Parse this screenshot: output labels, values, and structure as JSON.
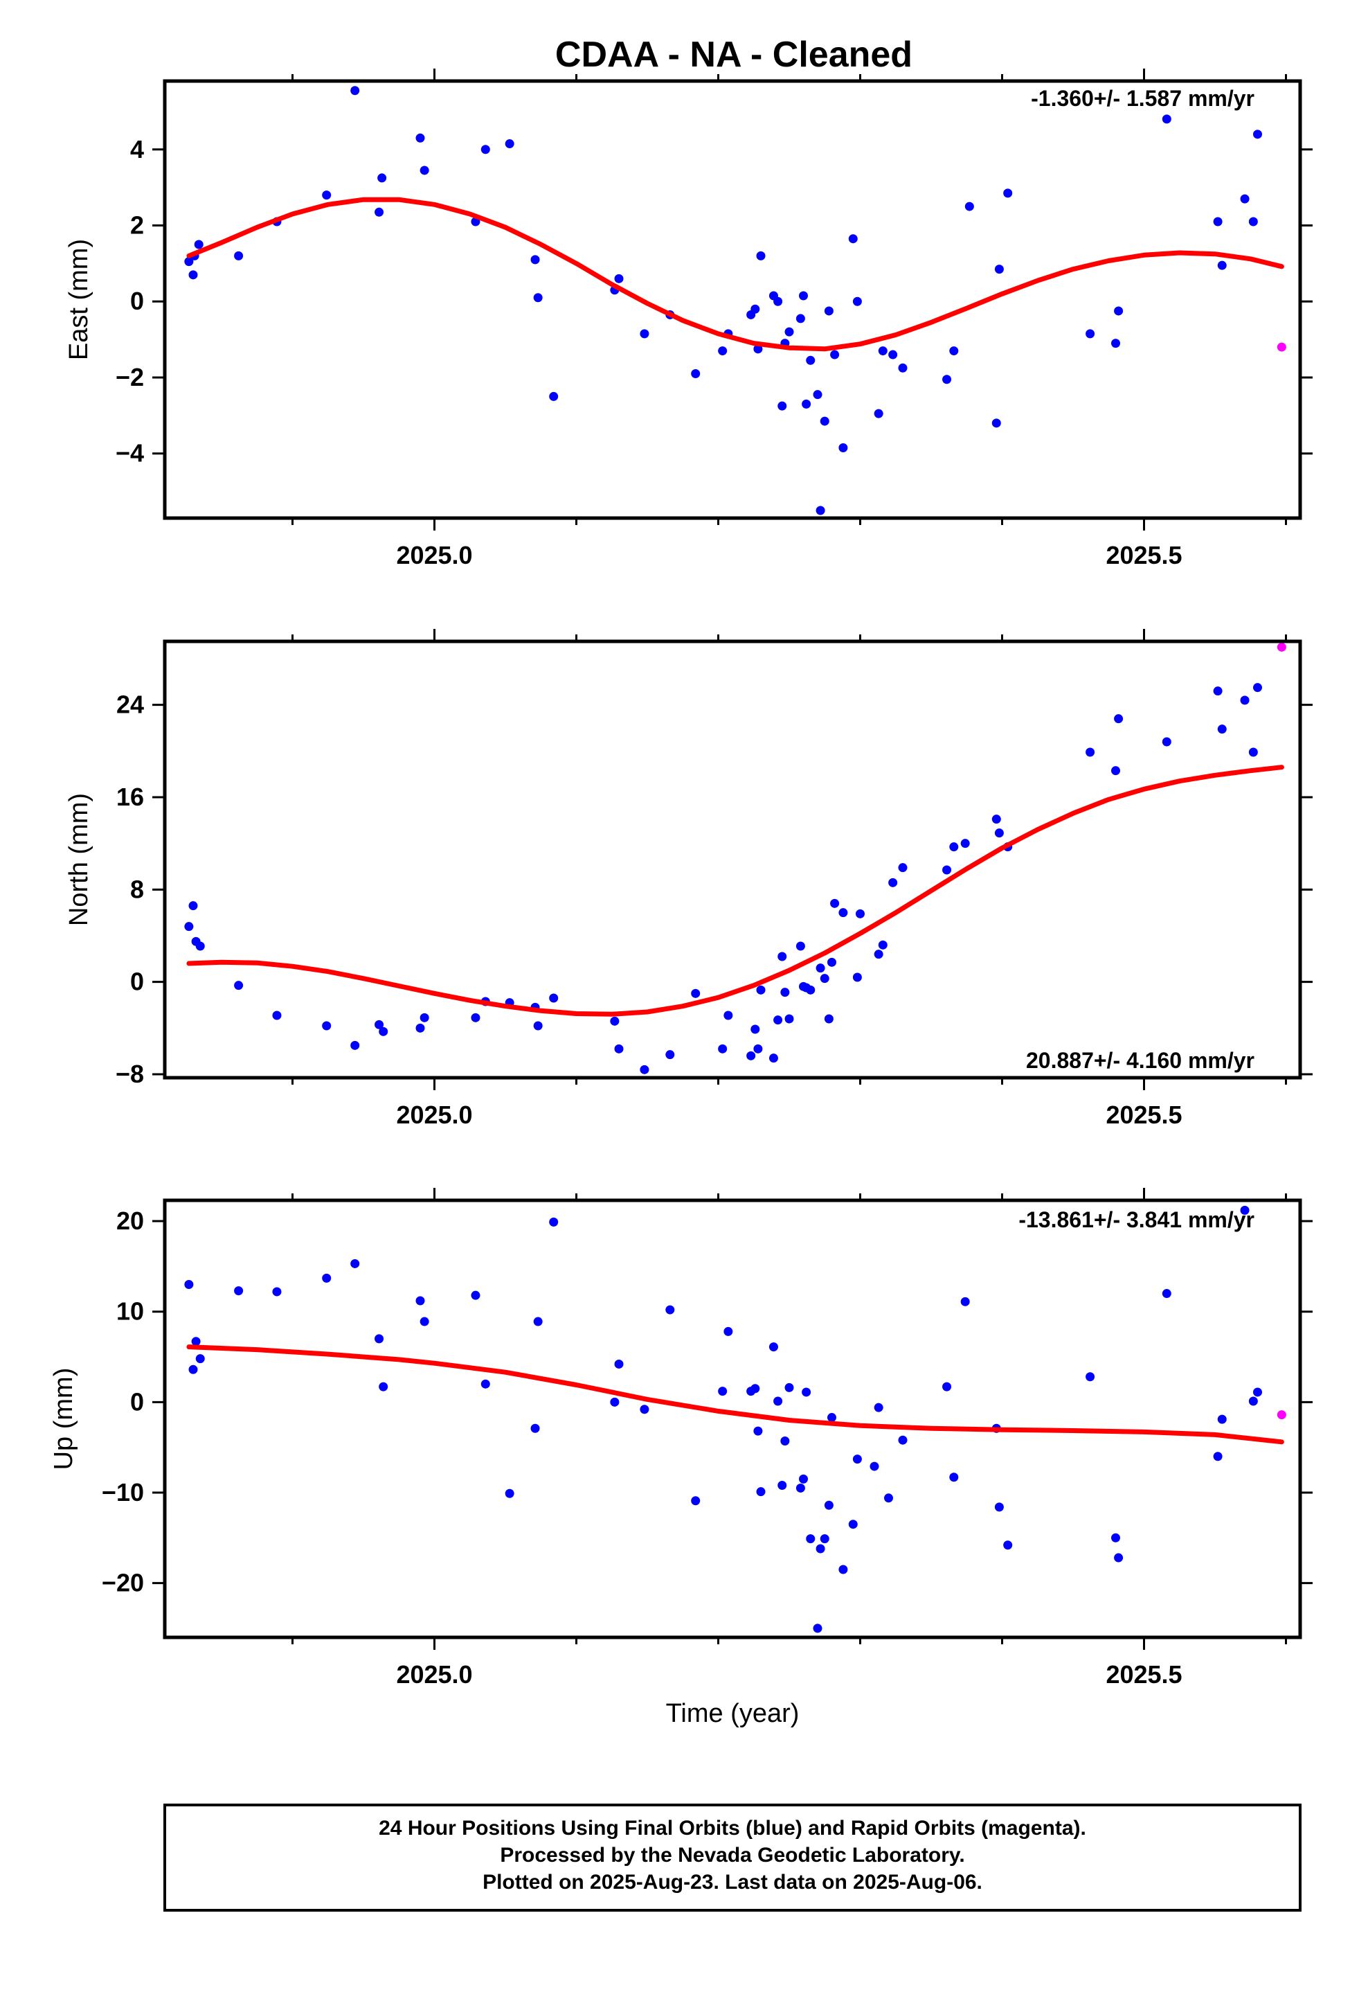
{
  "title": "CDAA  - NA - Cleaned",
  "xlabel": "Time (year)",
  "footer": [
    "24 Hour Positions Using Final Orbits (blue) and Rapid Orbits (magenta).",
    "Processed by the Nevada Geodetic Laboratory.",
    "Plotted on 2025-Aug-23. Last data on 2025-Aug-06."
  ],
  "colors": {
    "final": "#0000ff",
    "rapid": "#ff00ff",
    "fit": "#ff0000",
    "axis": "#000000"
  },
  "chart_data": [
    {
      "type": "scatter",
      "ylabel": "East (mm)",
      "rate": "-1.360+/- 1.587 mm/yr",
      "xlim": [
        2024.81,
        2025.61
      ],
      "ylim": [
        -5.7,
        5.8
      ],
      "yticks": [
        -4,
        -2,
        0,
        2,
        4
      ],
      "xticks": [
        2025.0,
        2025.5
      ],
      "xtick_labels": [
        "2025.0",
        "2025.5"
      ],
      "grid": false,
      "final": [
        [
          2024.827,
          1.05
        ],
        [
          2024.83,
          0.7
        ],
        [
          2024.831,
          1.2
        ],
        [
          2024.834,
          1.5
        ],
        [
          2024.862,
          1.2
        ],
        [
          2024.889,
          2.1
        ],
        [
          2024.924,
          2.8
        ],
        [
          2024.944,
          5.55
        ],
        [
          2024.961,
          2.35
        ],
        [
          2024.963,
          3.25
        ],
        [
          2024.99,
          4.3
        ],
        [
          2024.993,
          3.45
        ],
        [
          2025.029,
          2.1
        ],
        [
          2025.036,
          4.0
        ],
        [
          2025.053,
          4.15
        ],
        [
          2025.071,
          1.1
        ],
        [
          2025.073,
          0.1
        ],
        [
          2025.084,
          -2.5
        ],
        [
          2025.127,
          0.3
        ],
        [
          2025.13,
          0.6
        ],
        [
          2025.148,
          -0.85
        ],
        [
          2025.166,
          -0.35
        ],
        [
          2025.184,
          -1.9
        ],
        [
          2025.203,
          -1.3
        ],
        [
          2025.207,
          -0.85
        ],
        [
          2025.223,
          -0.35
        ],
        [
          2025.226,
          -0.2
        ],
        [
          2025.228,
          -1.25
        ],
        [
          2025.23,
          1.2
        ],
        [
          2025.239,
          0.15
        ],
        [
          2025.242,
          0.0
        ],
        [
          2025.245,
          -2.75
        ],
        [
          2025.247,
          -1.1
        ],
        [
          2025.25,
          -0.8
        ],
        [
          2025.258,
          -0.45
        ],
        [
          2025.26,
          0.15
        ],
        [
          2025.262,
          -2.7
        ],
        [
          2025.265,
          -1.55
        ],
        [
          2025.27,
          -2.45
        ],
        [
          2025.272,
          -5.5
        ],
        [
          2025.275,
          -3.15
        ],
        [
          2025.278,
          -0.25
        ],
        [
          2025.282,
          -1.4
        ],
        [
          2025.288,
          -3.85
        ],
        [
          2025.295,
          1.65
        ],
        [
          2025.298,
          0.0
        ],
        [
          2025.313,
          -2.95
        ],
        [
          2025.316,
          -1.3
        ],
        [
          2025.323,
          -1.4
        ],
        [
          2025.33,
          -1.75
        ],
        [
          2025.361,
          -2.05
        ],
        [
          2025.366,
          -1.3
        ],
        [
          2025.377,
          2.5
        ],
        [
          2025.396,
          -3.2
        ],
        [
          2025.398,
          0.85
        ],
        [
          2025.404,
          2.85
        ],
        [
          2025.462,
          -0.85
        ],
        [
          2025.48,
          -1.1
        ],
        [
          2025.482,
          -0.25
        ],
        [
          2025.516,
          4.8
        ],
        [
          2025.552,
          2.1
        ],
        [
          2025.555,
          0.95
        ],
        [
          2025.571,
          2.7
        ],
        [
          2025.577,
          2.1
        ],
        [
          2025.58,
          4.4
        ]
      ],
      "rapid": [
        [
          2025.597,
          -1.2
        ]
      ],
      "fit": [
        [
          2024.827,
          1.2
        ],
        [
          2024.85,
          1.55
        ],
        [
          2024.875,
          1.95
        ],
        [
          2024.9,
          2.3
        ],
        [
          2024.925,
          2.55
        ],
        [
          2024.95,
          2.68
        ],
        [
          2024.975,
          2.68
        ],
        [
          2025.0,
          2.55
        ],
        [
          2025.025,
          2.3
        ],
        [
          2025.05,
          1.95
        ],
        [
          2025.075,
          1.5
        ],
        [
          2025.1,
          1.0
        ],
        [
          2025.125,
          0.45
        ],
        [
          2025.15,
          -0.05
        ],
        [
          2025.175,
          -0.5
        ],
        [
          2025.2,
          -0.85
        ],
        [
          2025.225,
          -1.1
        ],
        [
          2025.25,
          -1.22
        ],
        [
          2025.275,
          -1.25
        ],
        [
          2025.3,
          -1.12
        ],
        [
          2025.325,
          -0.88
        ],
        [
          2025.35,
          -0.55
        ],
        [
          2025.375,
          -0.18
        ],
        [
          2025.4,
          0.2
        ],
        [
          2025.425,
          0.55
        ],
        [
          2025.45,
          0.85
        ],
        [
          2025.475,
          1.07
        ],
        [
          2025.5,
          1.22
        ],
        [
          2025.525,
          1.28
        ],
        [
          2025.55,
          1.25
        ],
        [
          2025.575,
          1.12
        ],
        [
          2025.597,
          0.92
        ]
      ]
    },
    {
      "type": "scatter",
      "ylabel": "North (mm)",
      "rate": "20.887+/- 4.160 mm/yr",
      "xlim": [
        2024.81,
        2025.61
      ],
      "ylim": [
        -8.3,
        29.5
      ],
      "yticks": [
        -8,
        0,
        8,
        16,
        24
      ],
      "xticks": [
        2025.0,
        2025.5
      ],
      "xtick_labels": [
        "2025.0",
        "2025.5"
      ],
      "grid": false,
      "final": [
        [
          2024.827,
          4.8
        ],
        [
          2024.83,
          6.6
        ],
        [
          2024.832,
          3.5
        ],
        [
          2024.835,
          3.1
        ],
        [
          2024.862,
          -0.3
        ],
        [
          2024.889,
          -2.9
        ],
        [
          2024.924,
          -3.8
        ],
        [
          2024.944,
          -5.5
        ],
        [
          2024.961,
          -3.7
        ],
        [
          2024.964,
          -4.3
        ],
        [
          2024.99,
          -4.0
        ],
        [
          2024.993,
          -3.1
        ],
        [
          2025.029,
          -3.1
        ],
        [
          2025.036,
          -1.7
        ],
        [
          2025.053,
          -1.8
        ],
        [
          2025.071,
          -2.2
        ],
        [
          2025.073,
          -3.8
        ],
        [
          2025.084,
          -1.4
        ],
        [
          2025.127,
          -3.4
        ],
        [
          2025.13,
          -5.8
        ],
        [
          2025.148,
          -7.6
        ],
        [
          2025.166,
          -6.3
        ],
        [
          2025.184,
          -1.0
        ],
        [
          2025.203,
          -5.8
        ],
        [
          2025.207,
          -2.9
        ],
        [
          2025.223,
          -6.4
        ],
        [
          2025.226,
          -4.1
        ],
        [
          2025.228,
          -5.8
        ],
        [
          2025.23,
          -0.7
        ],
        [
          2025.239,
          -6.6
        ],
        [
          2025.242,
          -3.3
        ],
        [
          2025.245,
          2.2
        ],
        [
          2025.247,
          -0.9
        ],
        [
          2025.25,
          -3.2
        ],
        [
          2025.258,
          3.1
        ],
        [
          2025.26,
          -0.4
        ],
        [
          2025.262,
          -0.5
        ],
        [
          2025.265,
          -0.7
        ],
        [
          2025.272,
          1.2
        ],
        [
          2025.275,
          0.3
        ],
        [
          2025.278,
          -3.2
        ],
        [
          2025.28,
          1.7
        ],
        [
          2025.282,
          6.8
        ],
        [
          2025.288,
          6.0
        ],
        [
          2025.298,
          0.4
        ],
        [
          2025.3,
          5.9
        ],
        [
          2025.313,
          2.4
        ],
        [
          2025.316,
          3.2
        ],
        [
          2025.323,
          8.6
        ],
        [
          2025.33,
          9.9
        ],
        [
          2025.361,
          9.7
        ],
        [
          2025.366,
          11.7
        ],
        [
          2025.374,
          12.0
        ],
        [
          2025.396,
          14.1
        ],
        [
          2025.398,
          12.9
        ],
        [
          2025.404,
          11.7
        ],
        [
          2025.462,
          19.9
        ],
        [
          2025.48,
          18.3
        ],
        [
          2025.482,
          22.8
        ],
        [
          2025.516,
          20.8
        ],
        [
          2025.552,
          25.2
        ],
        [
          2025.555,
          21.9
        ],
        [
          2025.571,
          24.4
        ],
        [
          2025.577,
          19.9
        ],
        [
          2025.58,
          25.5
        ]
      ],
      "rapid": [
        [
          2025.597,
          29.0
        ]
      ],
      "fit": [
        [
          2024.827,
          1.6
        ],
        [
          2024.85,
          1.7
        ],
        [
          2024.875,
          1.65
        ],
        [
          2024.9,
          1.35
        ],
        [
          2024.925,
          0.9
        ],
        [
          2024.95,
          0.3
        ],
        [
          2024.975,
          -0.35
        ],
        [
          2025.0,
          -1.0
        ],
        [
          2025.025,
          -1.6
        ],
        [
          2025.05,
          -2.1
        ],
        [
          2025.075,
          -2.5
        ],
        [
          2025.1,
          -2.75
        ],
        [
          2025.125,
          -2.8
        ],
        [
          2025.15,
          -2.6
        ],
        [
          2025.175,
          -2.1
        ],
        [
          2025.2,
          -1.35
        ],
        [
          2025.225,
          -0.3
        ],
        [
          2025.25,
          1.0
        ],
        [
          2025.275,
          2.5
        ],
        [
          2025.3,
          4.2
        ],
        [
          2025.325,
          6.0
        ],
        [
          2025.35,
          7.9
        ],
        [
          2025.375,
          9.8
        ],
        [
          2025.4,
          11.6
        ],
        [
          2025.425,
          13.2
        ],
        [
          2025.45,
          14.6
        ],
        [
          2025.475,
          15.8
        ],
        [
          2025.5,
          16.7
        ],
        [
          2025.525,
          17.4
        ],
        [
          2025.55,
          17.9
        ],
        [
          2025.575,
          18.3
        ],
        [
          2025.597,
          18.6
        ]
      ]
    },
    {
      "type": "scatter",
      "ylabel": "Up (mm)",
      "rate": "-13.861+/- 3.841 mm/yr",
      "xlim": [
        2024.81,
        2025.61
      ],
      "ylim": [
        -26,
        22.3
      ],
      "yticks": [
        -20,
        -10,
        0,
        10,
        20
      ],
      "xticks": [
        2025.0,
        2025.5
      ],
      "xtick_labels": [
        "2025.0",
        "2025.5"
      ],
      "grid": false,
      "final": [
        [
          2024.827,
          13.0
        ],
        [
          2024.83,
          3.6
        ],
        [
          2024.832,
          6.7
        ],
        [
          2024.835,
          4.8
        ],
        [
          2024.862,
          12.3
        ],
        [
          2024.889,
          12.2
        ],
        [
          2024.924,
          13.7
        ],
        [
          2024.944,
          15.3
        ],
        [
          2024.961,
          7.0
        ],
        [
          2024.964,
          1.7
        ],
        [
          2024.99,
          11.2
        ],
        [
          2024.993,
          8.9
        ],
        [
          2025.029,
          11.8
        ],
        [
          2025.036,
          2.0
        ],
        [
          2025.053,
          -10.1
        ],
        [
          2025.071,
          -2.9
        ],
        [
          2025.073,
          8.9
        ],
        [
          2025.084,
          19.9
        ],
        [
          2025.127,
          0.0
        ],
        [
          2025.13,
          4.2
        ],
        [
          2025.148,
          -0.8
        ],
        [
          2025.166,
          10.2
        ],
        [
          2025.184,
          -10.9
        ],
        [
          2025.203,
          1.2
        ],
        [
          2025.207,
          7.8
        ],
        [
          2025.223,
          1.2
        ],
        [
          2025.226,
          1.5
        ],
        [
          2025.228,
          -3.2
        ],
        [
          2025.23,
          -9.9
        ],
        [
          2025.239,
          6.1
        ],
        [
          2025.242,
          0.1
        ],
        [
          2025.245,
          -9.2
        ],
        [
          2025.247,
          -4.3
        ],
        [
          2025.25,
          1.6
        ],
        [
          2025.258,
          -9.5
        ],
        [
          2025.26,
          -8.5
        ],
        [
          2025.262,
          1.1
        ],
        [
          2025.265,
          -15.1
        ],
        [
          2025.27,
          -25.0
        ],
        [
          2025.272,
          -16.2
        ],
        [
          2025.275,
          -15.1
        ],
        [
          2025.278,
          -11.4
        ],
        [
          2025.28,
          -1.7
        ],
        [
          2025.288,
          -18.5
        ],
        [
          2025.295,
          -13.5
        ],
        [
          2025.298,
          -6.3
        ],
        [
          2025.31,
          -7.1
        ],
        [
          2025.313,
          -0.6
        ],
        [
          2025.32,
          -10.6
        ],
        [
          2025.33,
          -4.2
        ],
        [
          2025.361,
          1.7
        ],
        [
          2025.366,
          -8.3
        ],
        [
          2025.374,
          11.1
        ],
        [
          2025.396,
          -2.9
        ],
        [
          2025.398,
          -11.6
        ],
        [
          2025.404,
          -15.8
        ],
        [
          2025.462,
          2.8
        ],
        [
          2025.48,
          -15.0
        ],
        [
          2025.482,
          -17.2
        ],
        [
          2025.516,
          12.0
        ],
        [
          2025.552,
          -6.0
        ],
        [
          2025.555,
          -1.9
        ],
        [
          2025.571,
          21.2
        ],
        [
          2025.577,
          0.1
        ],
        [
          2025.58,
          1.1
        ]
      ],
      "rapid": [
        [
          2025.597,
          -1.4
        ]
      ],
      "fit": [
        [
          2024.827,
          6.1
        ],
        [
          2024.875,
          5.8
        ],
        [
          2024.925,
          5.3
        ],
        [
          2024.975,
          4.7
        ],
        [
          2025.0,
          4.3
        ],
        [
          2025.05,
          3.3
        ],
        [
          2025.1,
          1.9
        ],
        [
          2025.15,
          0.3
        ],
        [
          2025.2,
          -1.0
        ],
        [
          2025.25,
          -2.0
        ],
        [
          2025.3,
          -2.6
        ],
        [
          2025.35,
          -2.9
        ],
        [
          2025.4,
          -3.05
        ],
        [
          2025.45,
          -3.15
        ],
        [
          2025.5,
          -3.3
        ],
        [
          2025.55,
          -3.6
        ],
        [
          2025.597,
          -4.4
        ]
      ]
    }
  ]
}
